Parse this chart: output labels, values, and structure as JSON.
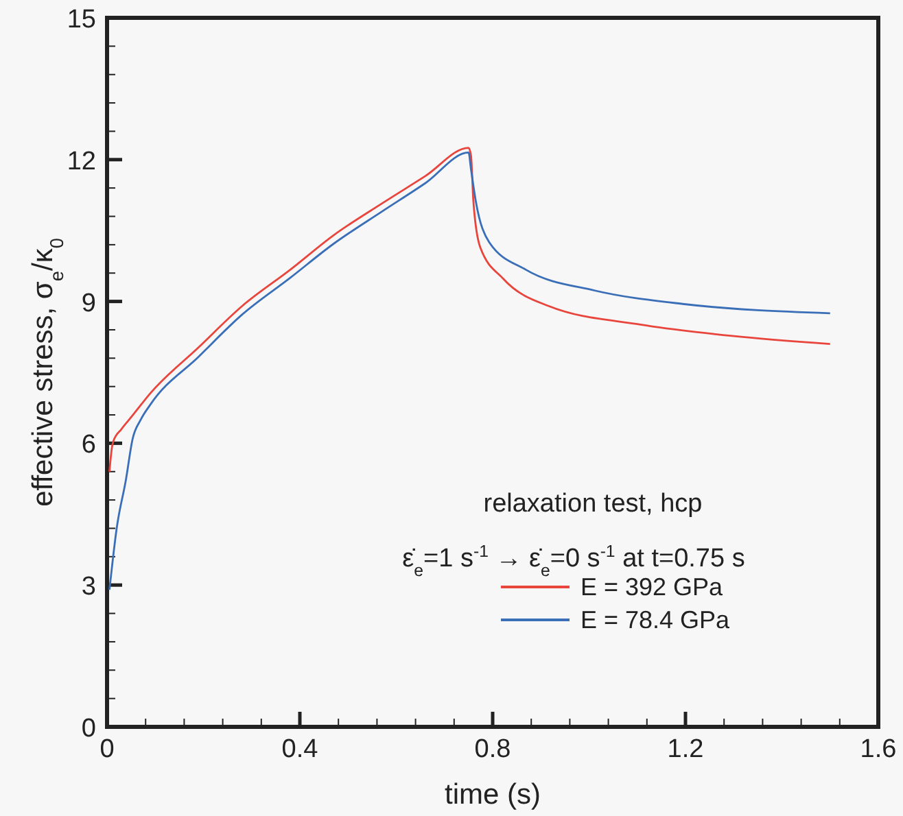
{
  "chart_data": {
    "type": "line",
    "xlabel": "time  (s)",
    "ylabel": "effective stress,  σ$_{e}$/κ$_{0}$",
    "xlim": [
      0,
      1.6
    ],
    "ylim": [
      0,
      15
    ],
    "xticks": [
      0,
      {
        "value": 0.08,
        "label": null
      },
      {
        "value": 0.16,
        "label": null
      },
      {
        "value": 0.24,
        "label": null
      },
      {
        "value": 0.32,
        "label": null
      },
      0.4,
      {
        "value": 0.48,
        "label": null
      },
      {
        "value": 0.56,
        "label": null
      },
      {
        "value": 0.64,
        "label": null
      },
      {
        "value": 0.72,
        "label": null
      },
      0.8,
      {
        "value": 0.88,
        "label": null
      },
      {
        "value": 0.96,
        "label": null
      },
      {
        "value": 1.04,
        "label": null
      },
      {
        "value": 1.12,
        "label": null
      },
      1.2,
      {
        "value": 1.28,
        "label": null
      },
      {
        "value": 1.36,
        "label": null
      },
      {
        "value": 1.44,
        "label": null
      },
      {
        "value": 1.52,
        "label": null
      },
      1.6
    ],
    "yticks": [
      0,
      {
        "value": 0.6,
        "label": null
      },
      {
        "value": 1.2,
        "label": null
      },
      {
        "value": 1.8,
        "label": null
      },
      {
        "value": 2.4,
        "label": null
      },
      3,
      {
        "value": 3.6,
        "label": null
      },
      {
        "value": 4.2,
        "label": null
      },
      {
        "value": 4.8,
        "label": null
      },
      {
        "value": 5.4,
        "label": null
      },
      6,
      {
        "value": 6.6,
        "label": null
      },
      {
        "value": 7.2,
        "label": null
      },
      {
        "value": 7.8,
        "label": null
      },
      {
        "value": 8.4,
        "label": null
      },
      9,
      {
        "value": 9.6,
        "label": null
      },
      {
        "value": 10.2,
        "label": null
      },
      {
        "value": 10.8,
        "label": null
      },
      {
        "value": 11.4,
        "label": null
      },
      12,
      {
        "value": 12.6,
        "label": null
      },
      {
        "value": 13.2,
        "label": null
      },
      {
        "value": 13.8,
        "label": null
      },
      {
        "value": 14.4,
        "label": null
      },
      15
    ],
    "legend": "bottom right",
    "grid": false,
    "line_style": "solid",
    "annotations": [
      "relaxation test,  hcp",
      "ε̇$_{e}$=1 s$^{-1}$ → ε̇$_{e}$=0 s$^{-1}$  at  t=0.75 s"
    ],
    "series": [
      {
        "name": "E = 392 GPa",
        "color": "#e8453c",
        "x": [
          0.005,
          0.01,
          0.013,
          0.03,
          0.05,
          0.09,
          0.19,
          0.28,
          0.38,
          0.47,
          0.57,
          0.66,
          0.75,
          0.755,
          0.76,
          0.774,
          0.822,
          0.917,
          1.107,
          1.297,
          1.5
        ],
        "values": [
          5.4,
          5.9,
          6.04,
          6.3,
          6.55,
          7.06,
          8.03,
          8.9,
          9.67,
          10.4,
          11.07,
          11.65,
          12.25,
          12.09,
          11.12,
          10.15,
          9.48,
          8.9,
          8.51,
          8.27,
          8.1
        ]
      },
      {
        "name": "E = 78.4 GPa",
        "color": "#3a6fb8",
        "x": [
          0.005,
          0.02,
          0.039,
          0.053,
          0.07,
          0.09,
          0.19,
          0.28,
          0.38,
          0.47,
          0.57,
          0.66,
          0.75,
          0.755,
          0.765,
          0.793,
          0.869,
          1.012,
          1.201,
          1.5
        ],
        "values": [
          2.9,
          4.2,
          5.22,
          6.09,
          6.5,
          6.82,
          7.83,
          8.72,
          9.5,
          10.22,
          10.9,
          11.5,
          12.15,
          11.8,
          11.12,
          10.25,
          9.67,
          9.23,
          8.94,
          8.75
        ]
      }
    ]
  }
}
